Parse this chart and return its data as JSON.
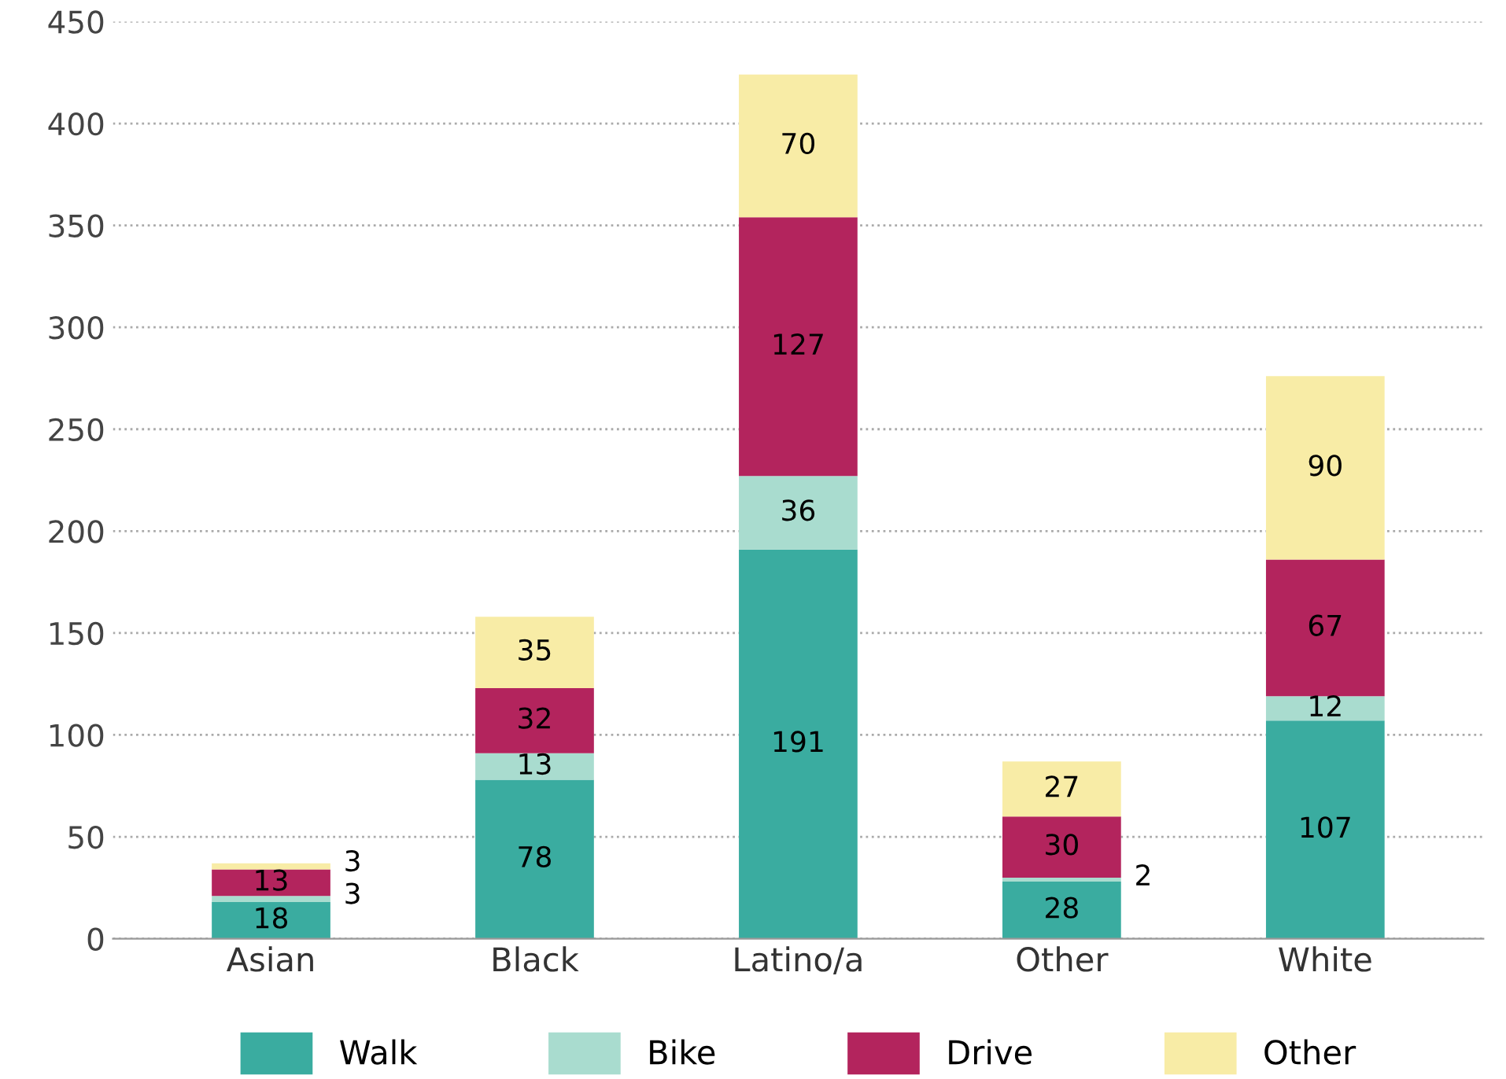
{
  "chart_data": {
    "type": "bar",
    "stacked": true,
    "categories": [
      "Asian",
      "Black",
      "Latino/a",
      "Other",
      "White"
    ],
    "series": [
      {
        "name": "Walk",
        "color": "#3aaca0",
        "values": [
          18,
          78,
          191,
          28,
          107
        ]
      },
      {
        "name": "Bike",
        "color": "#a9dccf",
        "values": [
          3,
          13,
          36,
          2,
          12
        ]
      },
      {
        "name": "Drive",
        "color": "#b3245d",
        "values": [
          13,
          32,
          127,
          30,
          67
        ]
      },
      {
        "name": "Other",
        "color": "#f8eca6",
        "values": [
          3,
          35,
          70,
          27,
          90
        ]
      }
    ],
    "ylim": [
      0,
      450
    ],
    "yticks": [
      0,
      50,
      100,
      150,
      200,
      250,
      300,
      350,
      400,
      450
    ],
    "grid": "y",
    "legend": "bottom",
    "data_labels": true
  }
}
